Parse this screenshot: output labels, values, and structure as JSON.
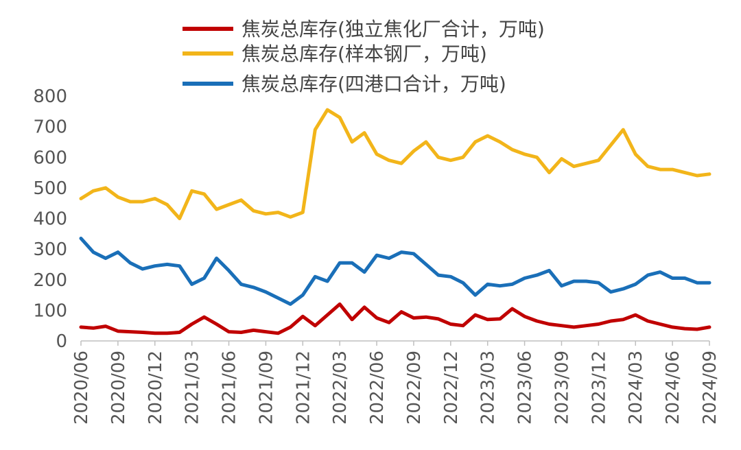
{
  "chart_data": {
    "type": "line",
    "title": "",
    "xlabel": "",
    "ylabel": "",
    "ylim": [
      0,
      800
    ],
    "yticks": [
      0,
      100,
      200,
      300,
      400,
      500,
      600,
      700,
      800
    ],
    "xticks": [
      "2020/06",
      "2020/09",
      "2020/12",
      "2021/03",
      "2021/06",
      "2021/09",
      "2021/12",
      "2022/03",
      "2022/06",
      "2022/09",
      "2022/12",
      "2023/03",
      "2023/06",
      "2023/09",
      "2023/12",
      "2024/03",
      "2024/06",
      "2024/09"
    ],
    "x_range": [
      "2020/06",
      "2024/09"
    ],
    "grid": false,
    "legend_position": "top",
    "series": [
      {
        "name": "焦炭总库存(独立焦化厂合计，万吨)",
        "color": "#c00000",
        "x": [
          "2020/06",
          "2020/07",
          "2020/08",
          "2020/09",
          "2020/10",
          "2020/11",
          "2020/12",
          "2021/01",
          "2021/02",
          "2021/03",
          "2021/04",
          "2021/05",
          "2021/06",
          "2021/07",
          "2021/08",
          "2021/09",
          "2021/10",
          "2021/11",
          "2021/12",
          "2022/01",
          "2022/02",
          "2022/03",
          "2022/04",
          "2022/05",
          "2022/06",
          "2022/07",
          "2022/08",
          "2022/09",
          "2022/10",
          "2022/11",
          "2022/12",
          "2023/01",
          "2023/02",
          "2023/03",
          "2023/04",
          "2023/05",
          "2023/06",
          "2023/07",
          "2023/08",
          "2023/09",
          "2023/10",
          "2023/11",
          "2023/12",
          "2024/01",
          "2024/02",
          "2024/03",
          "2024/04",
          "2024/05",
          "2024/06",
          "2024/07",
          "2024/08",
          "2024/09"
        ],
        "values": [
          45,
          42,
          48,
          32,
          30,
          28,
          25,
          25,
          28,
          55,
          78,
          55,
          30,
          28,
          35,
          30,
          25,
          45,
          80,
          50,
          85,
          120,
          70,
          110,
          75,
          60,
          95,
          75,
          78,
          72,
          55,
          50,
          85,
          70,
          72,
          105,
          80,
          65,
          55,
          50,
          45,
          50,
          55,
          65,
          70,
          85,
          65,
          55,
          45,
          40,
          38,
          45
        ]
      },
      {
        "name": "焦炭总库存(样本钢厂，万吨)",
        "color": "#f2b51a",
        "x": [
          "2020/06",
          "2020/07",
          "2020/08",
          "2020/09",
          "2020/10",
          "2020/11",
          "2020/12",
          "2021/01",
          "2021/02",
          "2021/03",
          "2021/04",
          "2021/05",
          "2021/06",
          "2021/07",
          "2021/08",
          "2021/09",
          "2021/10",
          "2021/11",
          "2021/12",
          "2022/01",
          "2022/02",
          "2022/03",
          "2022/04",
          "2022/05",
          "2022/06",
          "2022/07",
          "2022/08",
          "2022/09",
          "2022/10",
          "2022/11",
          "2022/12",
          "2023/01",
          "2023/02",
          "2023/03",
          "2023/04",
          "2023/05",
          "2023/06",
          "2023/07",
          "2023/08",
          "2023/09",
          "2023/10",
          "2023/11",
          "2023/12",
          "2024/01",
          "2024/02",
          "2024/03",
          "2024/04",
          "2024/05",
          "2024/06",
          "2024/07",
          "2024/08",
          "2024/09"
        ],
        "values": [
          465,
          490,
          500,
          470,
          455,
          455,
          465,
          445,
          400,
          490,
          480,
          430,
          445,
          460,
          425,
          415,
          420,
          405,
          420,
          690,
          755,
          730,
          650,
          680,
          610,
          590,
          580,
          620,
          650,
          600,
          590,
          600,
          650,
          670,
          650,
          625,
          610,
          600,
          550,
          595,
          570,
          580,
          590,
          640,
          690,
          610,
          570,
          560,
          560,
          550,
          540,
          545
        ]
      },
      {
        "name": "焦炭总库存(四港口合计，万吨)",
        "color": "#1a6fb8",
        "x": [
          "2020/06",
          "2020/07",
          "2020/08",
          "2020/09",
          "2020/10",
          "2020/11",
          "2020/12",
          "2021/01",
          "2021/02",
          "2021/03",
          "2021/04",
          "2021/05",
          "2021/06",
          "2021/07",
          "2021/08",
          "2021/09",
          "2021/10",
          "2021/11",
          "2021/12",
          "2022/01",
          "2022/02",
          "2022/03",
          "2022/04",
          "2022/05",
          "2022/06",
          "2022/07",
          "2022/08",
          "2022/09",
          "2022/10",
          "2022/11",
          "2022/12",
          "2023/01",
          "2023/02",
          "2023/03",
          "2023/04",
          "2023/05",
          "2023/06",
          "2023/07",
          "2023/08",
          "2023/09",
          "2023/10",
          "2023/11",
          "2023/12",
          "2024/01",
          "2024/02",
          "2024/03",
          "2024/04",
          "2024/05",
          "2024/06",
          "2024/07",
          "2024/08",
          "2024/09"
        ],
        "values": [
          335,
          290,
          270,
          290,
          255,
          235,
          245,
          250,
          245,
          185,
          205,
          270,
          230,
          185,
          175,
          160,
          140,
          120,
          150,
          210,
          195,
          255,
          255,
          225,
          280,
          270,
          290,
          285,
          250,
          215,
          210,
          190,
          150,
          185,
          180,
          185,
          205,
          215,
          230,
          180,
          195,
          195,
          190,
          160,
          170,
          185,
          215,
          225,
          205,
          205,
          190,
          190
        ]
      }
    ]
  }
}
